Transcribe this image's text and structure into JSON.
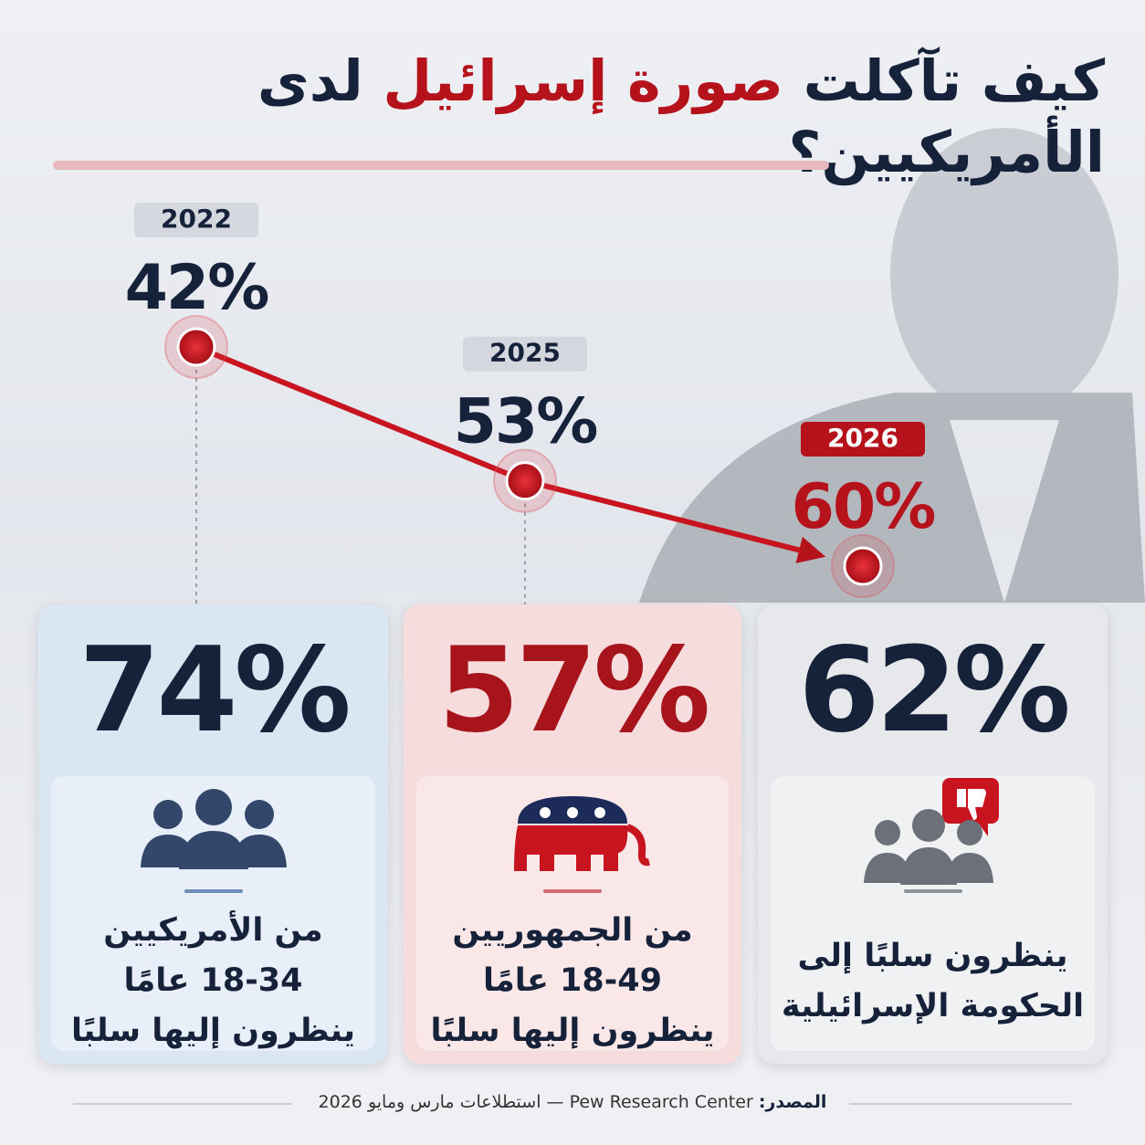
{
  "title": {
    "part1": "كيف تآكلت",
    "highlight": "صورة إسرائيل",
    "part2": "لدى الأمريكيين؟"
  },
  "chart_data": {
    "type": "line",
    "x": [
      "2022",
      "2025",
      "2026"
    ],
    "values": [
      42,
      53,
      60
    ],
    "value_labels": [
      "42%",
      "53%",
      "60%"
    ],
    "color": "#c8141f",
    "ylim": [
      66,
      36
    ]
  },
  "cards": [
    {
      "headline": "74%",
      "lines": [
        "من الأمريكيين",
        "18-34 عامًا",
        "ينظرون إليها سلبًا"
      ]
    },
    {
      "headline": "57%",
      "lines": [
        "من الجمهوريين",
        "18-49 عامًا",
        "ينظرون إليها سلبًا"
      ]
    },
    {
      "headline": "62%",
      "lines": [
        "ينظرون سلبًا إلى",
        "الحكومة الإسرائيلية"
      ]
    }
  ],
  "source": {
    "label": "المصدر:",
    "text": "Pew Research Center — استطلاعات مارس ومايو 2026"
  }
}
